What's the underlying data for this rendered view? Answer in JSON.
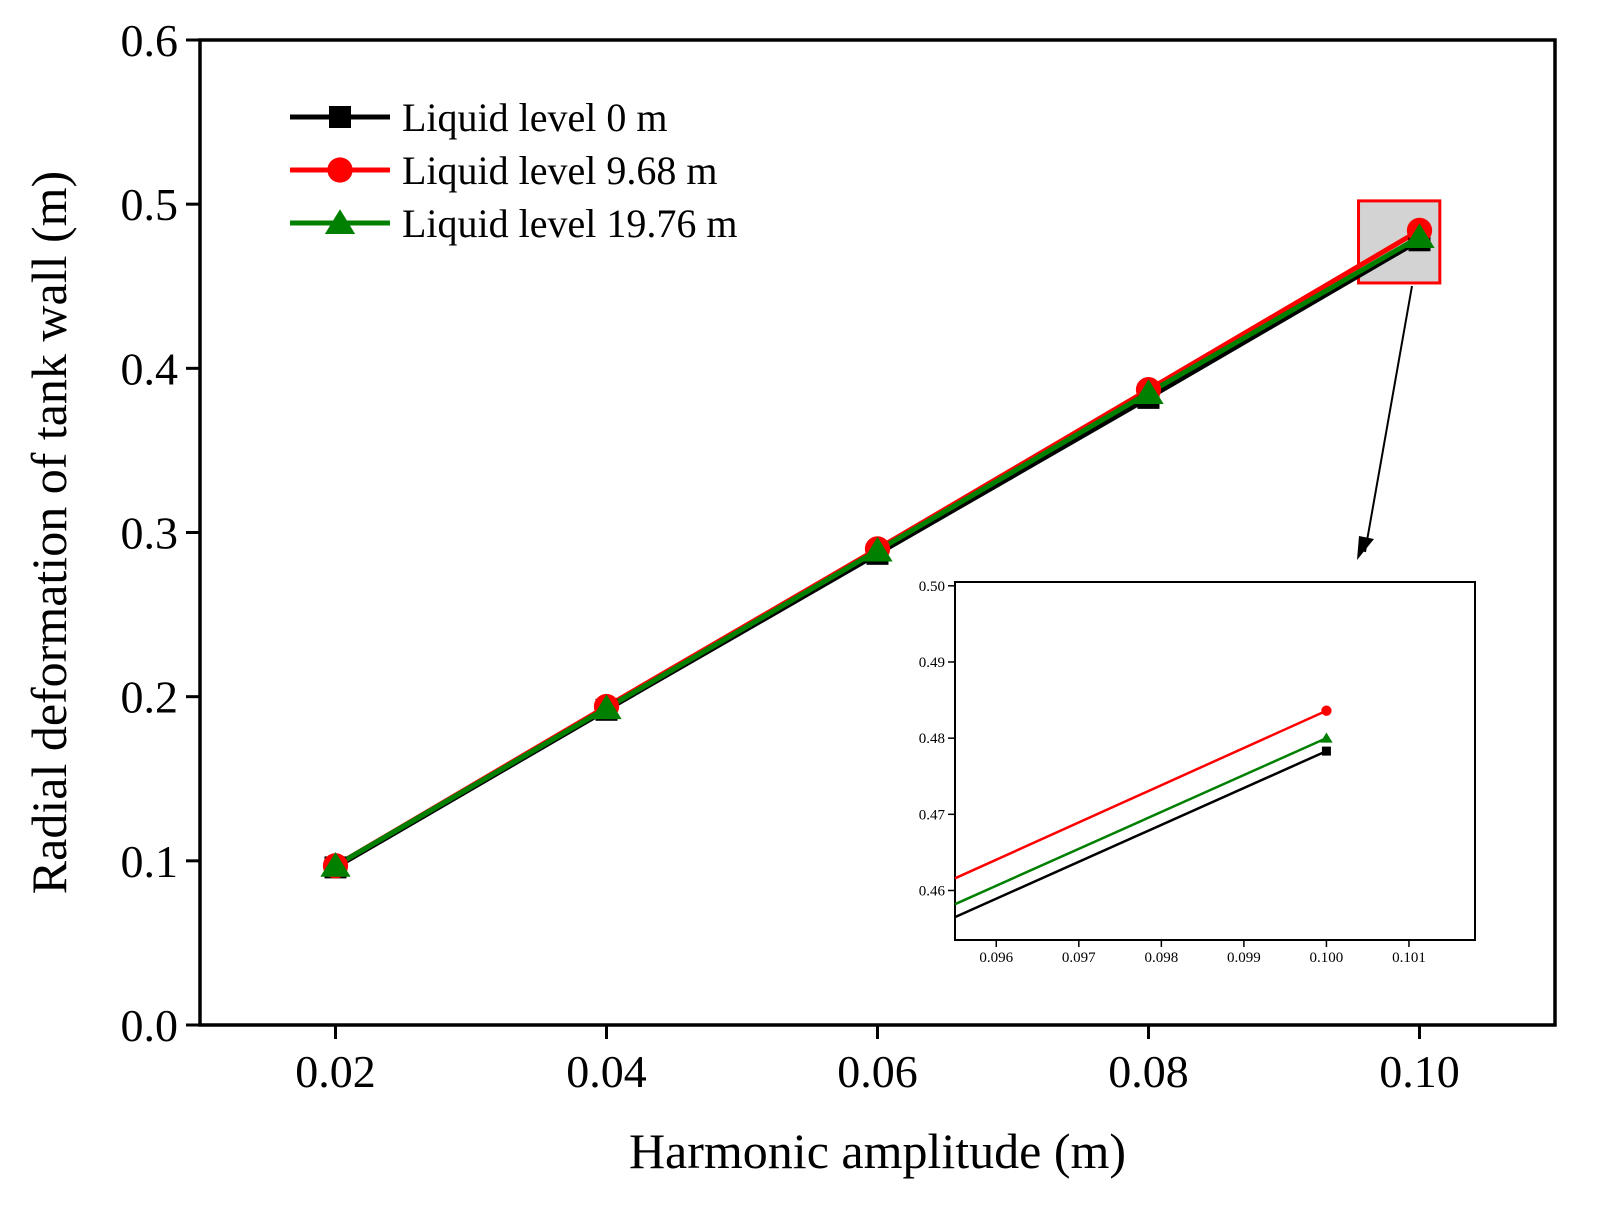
{
  "chart_data": [
    {
      "type": "line",
      "role": "main",
      "title": "",
      "xlabel": "Harmonic amplitude (m)",
      "ylabel": "Radial deformation of tank wall (m)",
      "xlim": [
        0.01,
        0.11
      ],
      "ylim": [
        0.0,
        0.6
      ],
      "xticks": [
        0.02,
        0.04,
        0.06,
        0.08,
        0.1
      ],
      "xtick_labels": [
        "0.02",
        "0.04",
        "0.06",
        "0.08",
        "0.10"
      ],
      "yticks": [
        0.0,
        0.1,
        0.2,
        0.3,
        0.4,
        0.5,
        0.6
      ],
      "ytick_labels": [
        "0.0",
        "0.1",
        "0.2",
        "0.3",
        "0.4",
        "0.5",
        "0.6"
      ],
      "x": [
        0.02,
        0.04,
        0.06,
        0.08,
        0.1
      ],
      "series": [
        {
          "name": "Liquid level 0 m",
          "color": "#000000",
          "marker": "square",
          "values": [
            0.096,
            0.192,
            0.287,
            0.382,
            0.478
          ]
        },
        {
          "name": "Liquid level 9.68 m",
          "color": "#ff0000",
          "marker": "circle",
          "values": [
            0.097,
            0.194,
            0.29,
            0.387,
            0.484
          ]
        },
        {
          "name": "Liquid level 19.76 m",
          "color": "#008000",
          "marker": "triangle",
          "values": [
            0.097,
            0.193,
            0.289,
            0.385,
            0.48
          ]
        }
      ],
      "legend": "top-left",
      "grid": false,
      "highlight_box": {
        "x_range": [
          0.0955,
          0.1015
        ],
        "y_range": [
          0.452,
          0.502
        ],
        "color": "#ff0000",
        "fill": "#d3d3d3"
      }
    },
    {
      "type": "line",
      "role": "inset",
      "title": "",
      "xlim": [
        0.0955,
        0.1018
      ],
      "ylim": [
        0.4535,
        0.5005
      ],
      "xticks": [
        0.096,
        0.097,
        0.098,
        0.099,
        0.1,
        0.101
      ],
      "xtick_labels": [
        "0.096",
        "0.097",
        "0.098",
        "0.099",
        "0.100",
        "0.101"
      ],
      "yticks": [
        0.46,
        0.47,
        0.48,
        0.49,
        0.5
      ],
      "ytick_labels": [
        "0.46",
        "0.47",
        "0.48",
        "0.49",
        "0.50"
      ],
      "series": [
        {
          "name": "Liquid level 0 m",
          "color": "#000000",
          "marker": "square",
          "x": [
            0.0955,
            0.1
          ],
          "values": [
            0.4565,
            0.4783
          ]
        },
        {
          "name": "Liquid level 9.68 m",
          "color": "#ff0000",
          "marker": "circle",
          "x": [
            0.0955,
            0.1
          ],
          "values": [
            0.4616,
            0.4836
          ]
        },
        {
          "name": "Liquid level 19.76 m",
          "color": "#008000",
          "marker": "triangle",
          "x": [
            0.0955,
            0.1
          ],
          "values": [
            0.4582,
            0.48
          ]
        }
      ]
    }
  ]
}
